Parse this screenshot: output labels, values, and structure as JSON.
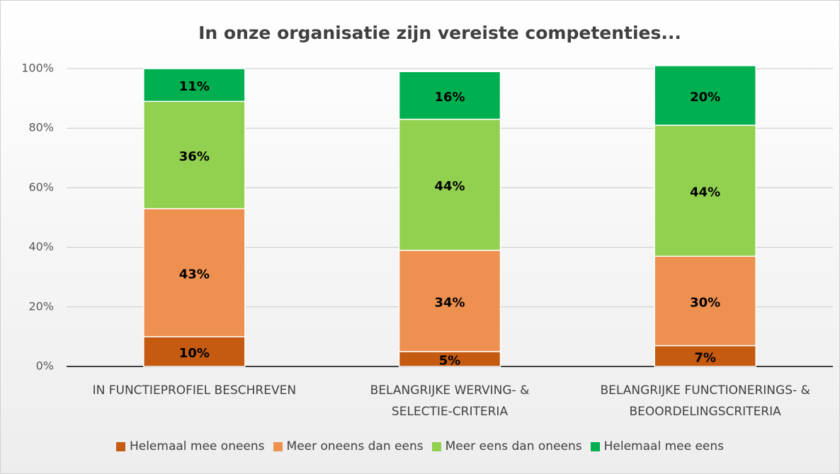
{
  "chart_data": {
    "type": "stacked_bar",
    "title": "In onze organisatie zijn vereiste competenties...",
    "categories": [
      "IN FUNCTIEPROFIEL BESCHREVEN",
      "BELANGRIJKE WERVING- & SELECTIE-CRITERIA",
      "BELANGRIJKE FUNCTIONERINGS- & BEOORDELINGSCRITERIA"
    ],
    "series": [
      {
        "name": "Helemaal mee oneens",
        "color": "#c55a11",
        "values": [
          10,
          5,
          7
        ],
        "value_labels": [
          "10%",
          "5%",
          "7%"
        ]
      },
      {
        "name": "Meer oneens dan eens",
        "color": "#ee904f",
        "values": [
          43,
          34,
          30
        ],
        "value_labels": [
          "43%",
          "34%",
          "30%"
        ]
      },
      {
        "name": "Meer eens dan oneens",
        "color": "#92d050",
        "values": [
          36,
          44,
          44
        ],
        "value_labels": [
          "36%",
          "44%",
          "44%"
        ]
      },
      {
        "name": "Helemaal mee eens",
        "color": "#00b050",
        "values": [
          11,
          16,
          20
        ],
        "value_labels": [
          "11%",
          "16%",
          "20%"
        ]
      }
    ],
    "ylim": [
      0,
      100
    ],
    "yticks": [
      {
        "value": 0,
        "label": "0%"
      },
      {
        "value": 20,
        "label": "20%"
      },
      {
        "value": 40,
        "label": "40%"
      },
      {
        "value": 60,
        "label": "60%"
      },
      {
        "value": 80,
        "label": "80%"
      },
      {
        "value": 100,
        "label": "100%"
      }
    ],
    "grid": true,
    "legend": "bottom"
  }
}
